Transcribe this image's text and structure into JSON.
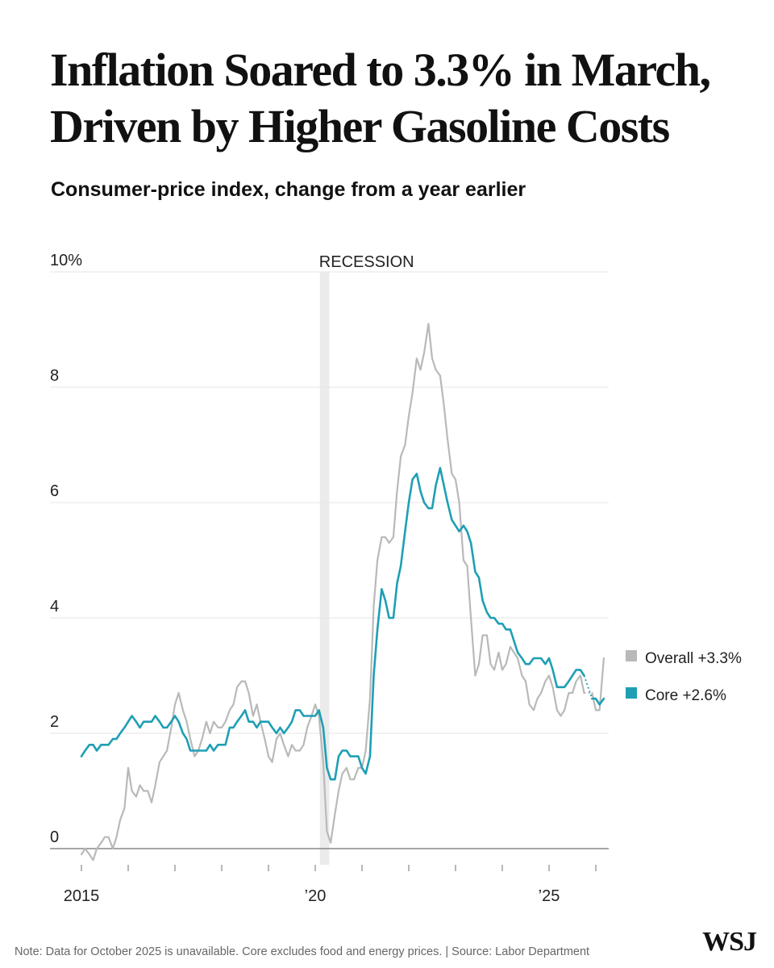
{
  "title": "Inflation Soared to 3.3% in March, Driven by Higher Gasoline Costs",
  "subtitle": "Consumer-price index, change from a year earlier",
  "note": "Note: Data for October 2025 is unavailable. Core excludes food and energy prices. | Source: Labor Department",
  "brand": "WSJ",
  "colors": {
    "overall": "#b9b9b9",
    "core": "#1e9fb4",
    "recession": "#ebebeb",
    "grid": "#e6e6e6",
    "axis": "#888888"
  },
  "chart_data": {
    "type": "line",
    "title": "Inflation Soared to 3.3% in March, Driven by Higher Gasoline Costs",
    "subtitle": "Consumer-price index, change from a year earlier",
    "xlabel": "",
    "ylabel": "",
    "xlim": [
      2015.0,
      2026.25
    ],
    "ylim": [
      -0.5,
      10
    ],
    "grid": true,
    "y_ticks": [
      {
        "value": 10,
        "label": "10%"
      },
      {
        "value": 8,
        "label": "8"
      },
      {
        "value": 6,
        "label": "6"
      },
      {
        "value": 4,
        "label": "4"
      },
      {
        "value": 2,
        "label": "2"
      },
      {
        "value": 0,
        "label": "0"
      }
    ],
    "x_tick_years": [
      2015,
      2016,
      2017,
      2018,
      2019,
      2020,
      2021,
      2022,
      2023,
      2024,
      2025,
      2026
    ],
    "x_tick_labels": [
      {
        "value": 2015,
        "label": "2015"
      },
      {
        "value": 2020,
        "label": "’20"
      },
      {
        "value": 2025,
        "label": "’25"
      }
    ],
    "annotations": [
      {
        "type": "shaded_period",
        "label": "RECESSION",
        "start": 2020.1,
        "end": 2020.3
      }
    ],
    "legend_position": "right",
    "gap": {
      "start": 2025.58,
      "end": 2025.83,
      "style": "dotted"
    },
    "series": [
      {
        "name": "Overall",
        "legend_label": "Overall +3.3%",
        "x": [
          2015.0,
          2015.08,
          2015.17,
          2015.25,
          2015.33,
          2015.42,
          2015.5,
          2015.58,
          2015.67,
          2015.75,
          2015.83,
          2015.92,
          2016.0,
          2016.08,
          2016.17,
          2016.25,
          2016.33,
          2016.42,
          2016.5,
          2016.58,
          2016.67,
          2016.75,
          2016.83,
          2016.92,
          2017.0,
          2017.08,
          2017.17,
          2017.25,
          2017.33,
          2017.42,
          2017.5,
          2017.58,
          2017.67,
          2017.75,
          2017.83,
          2017.92,
          2018.0,
          2018.08,
          2018.17,
          2018.25,
          2018.33,
          2018.42,
          2018.5,
          2018.58,
          2018.67,
          2018.75,
          2018.83,
          2018.92,
          2019.0,
          2019.08,
          2019.17,
          2019.25,
          2019.33,
          2019.42,
          2019.5,
          2019.58,
          2019.67,
          2019.75,
          2019.83,
          2019.92,
          2020.0,
          2020.08,
          2020.17,
          2020.25,
          2020.33,
          2020.42,
          2020.5,
          2020.58,
          2020.67,
          2020.75,
          2020.83,
          2020.92,
          2021.0,
          2021.08,
          2021.17,
          2021.25,
          2021.33,
          2021.42,
          2021.5,
          2021.58,
          2021.67,
          2021.75,
          2021.83,
          2021.92,
          2022.0,
          2022.08,
          2022.17,
          2022.25,
          2022.33,
          2022.42,
          2022.5,
          2022.58,
          2022.67,
          2022.75,
          2022.83,
          2022.92,
          2023.0,
          2023.08,
          2023.17,
          2023.25,
          2023.33,
          2023.42,
          2023.5,
          2023.58,
          2023.67,
          2023.75,
          2023.83,
          2023.92,
          2024.0,
          2024.08,
          2024.17,
          2024.25,
          2024.33,
          2024.42,
          2024.5,
          2024.58,
          2024.67,
          2024.75,
          2024.83,
          2024.92,
          2025.0,
          2025.08,
          2025.17,
          2025.25,
          2025.33,
          2025.42,
          2025.5,
          2025.58,
          2025.67,
          2025.75,
          2025.83,
          2025.92,
          2026.0,
          2026.08,
          2026.17
        ],
        "values": [
          -0.1,
          0.0,
          -0.1,
          -0.2,
          0.0,
          0.1,
          0.2,
          0.2,
          0.0,
          0.2,
          0.5,
          0.7,
          1.4,
          1.0,
          0.9,
          1.1,
          1.0,
          1.0,
          0.8,
          1.1,
          1.5,
          1.6,
          1.7,
          2.1,
          2.5,
          2.7,
          2.4,
          2.2,
          1.9,
          1.6,
          1.7,
          1.9,
          2.2,
          2.0,
          2.2,
          2.1,
          2.1,
          2.2,
          2.4,
          2.5,
          2.8,
          2.9,
          2.9,
          2.7,
          2.3,
          2.5,
          2.2,
          1.9,
          1.6,
          1.5,
          1.9,
          2.0,
          1.8,
          1.6,
          1.8,
          1.7,
          1.7,
          1.8,
          2.1,
          2.3,
          2.5,
          2.3,
          1.5,
          0.3,
          0.1,
          0.6,
          1.0,
          1.3,
          1.4,
          1.2,
          1.2,
          1.4,
          1.4,
          1.7,
          2.6,
          4.2,
          5.0,
          5.4,
          5.4,
          5.3,
          5.4,
          6.2,
          6.8,
          7.0,
          7.5,
          7.9,
          8.5,
          8.3,
          8.6,
          9.1,
          8.5,
          8.3,
          8.2,
          7.7,
          7.1,
          6.5,
          6.4,
          6.0,
          5.0,
          4.9,
          4.0,
          3.0,
          3.2,
          3.7,
          3.7,
          3.2,
          3.1,
          3.4,
          3.1,
          3.2,
          3.5,
          3.4,
          3.3,
          3.0,
          2.9,
          2.5,
          2.4,
          2.6,
          2.7,
          2.9,
          3.0,
          2.8,
          2.4,
          2.3,
          2.4,
          2.7,
          2.7,
          2.9,
          3.0,
          2.7,
          null,
          2.7,
          2.4,
          2.4,
          3.3
        ]
      },
      {
        "name": "Core",
        "legend_label": "Core +2.6%",
        "x": [
          2015.0,
          2015.08,
          2015.17,
          2015.25,
          2015.33,
          2015.42,
          2015.5,
          2015.58,
          2015.67,
          2015.75,
          2015.83,
          2015.92,
          2016.0,
          2016.08,
          2016.17,
          2016.25,
          2016.33,
          2016.42,
          2016.5,
          2016.58,
          2016.67,
          2016.75,
          2016.83,
          2016.92,
          2017.0,
          2017.08,
          2017.17,
          2017.25,
          2017.33,
          2017.42,
          2017.5,
          2017.58,
          2017.67,
          2017.75,
          2017.83,
          2017.92,
          2018.0,
          2018.08,
          2018.17,
          2018.25,
          2018.33,
          2018.42,
          2018.5,
          2018.58,
          2018.67,
          2018.75,
          2018.83,
          2018.92,
          2019.0,
          2019.08,
          2019.17,
          2019.25,
          2019.33,
          2019.42,
          2019.5,
          2019.58,
          2019.67,
          2019.75,
          2019.83,
          2019.92,
          2020.0,
          2020.08,
          2020.17,
          2020.25,
          2020.33,
          2020.42,
          2020.5,
          2020.58,
          2020.67,
          2020.75,
          2020.83,
          2020.92,
          2021.0,
          2021.08,
          2021.17,
          2021.25,
          2021.33,
          2021.42,
          2021.5,
          2021.58,
          2021.67,
          2021.75,
          2021.83,
          2021.92,
          2022.0,
          2022.08,
          2022.17,
          2022.25,
          2022.33,
          2022.42,
          2022.5,
          2022.58,
          2022.67,
          2022.75,
          2022.83,
          2022.92,
          2023.0,
          2023.08,
          2023.17,
          2023.25,
          2023.33,
          2023.42,
          2023.5,
          2023.58,
          2023.67,
          2023.75,
          2023.83,
          2023.92,
          2024.0,
          2024.08,
          2024.17,
          2024.25,
          2024.33,
          2024.42,
          2024.5,
          2024.58,
          2024.67,
          2024.75,
          2024.83,
          2024.92,
          2025.0,
          2025.08,
          2025.17,
          2025.25,
          2025.33,
          2025.42,
          2025.5,
          2025.58,
          2025.67,
          2025.75,
          2025.83,
          2025.92,
          2026.0,
          2026.08,
          2026.17
        ],
        "values": [
          1.6,
          1.7,
          1.8,
          1.8,
          1.7,
          1.8,
          1.8,
          1.8,
          1.9,
          1.9,
          2.0,
          2.1,
          2.2,
          2.3,
          2.2,
          2.1,
          2.2,
          2.2,
          2.2,
          2.3,
          2.2,
          2.1,
          2.1,
          2.2,
          2.3,
          2.2,
          2.0,
          1.9,
          1.7,
          1.7,
          1.7,
          1.7,
          1.7,
          1.8,
          1.7,
          1.8,
          1.8,
          1.8,
          2.1,
          2.1,
          2.2,
          2.3,
          2.4,
          2.2,
          2.2,
          2.1,
          2.2,
          2.2,
          2.2,
          2.1,
          2.0,
          2.1,
          2.0,
          2.1,
          2.2,
          2.4,
          2.4,
          2.3,
          2.3,
          2.3,
          2.3,
          2.4,
          2.1,
          1.4,
          1.2,
          1.2,
          1.6,
          1.7,
          1.7,
          1.6,
          1.6,
          1.6,
          1.4,
          1.3,
          1.6,
          3.0,
          3.8,
          4.5,
          4.3,
          4.0,
          4.0,
          4.6,
          4.9,
          5.5,
          6.0,
          6.4,
          6.5,
          6.2,
          6.0,
          5.9,
          5.9,
          6.3,
          6.6,
          6.3,
          6.0,
          5.7,
          5.6,
          5.5,
          5.6,
          5.5,
          5.3,
          4.8,
          4.7,
          4.3,
          4.1,
          4.0,
          4.0,
          3.9,
          3.9,
          3.8,
          3.8,
          3.6,
          3.4,
          3.3,
          3.2,
          3.2,
          3.3,
          3.3,
          3.3,
          3.2,
          3.3,
          3.1,
          2.8,
          2.8,
          2.8,
          2.9,
          3.0,
          3.1,
          3.1,
          3.0,
          null,
          2.6,
          2.6,
          2.5,
          2.6
        ]
      }
    ]
  }
}
